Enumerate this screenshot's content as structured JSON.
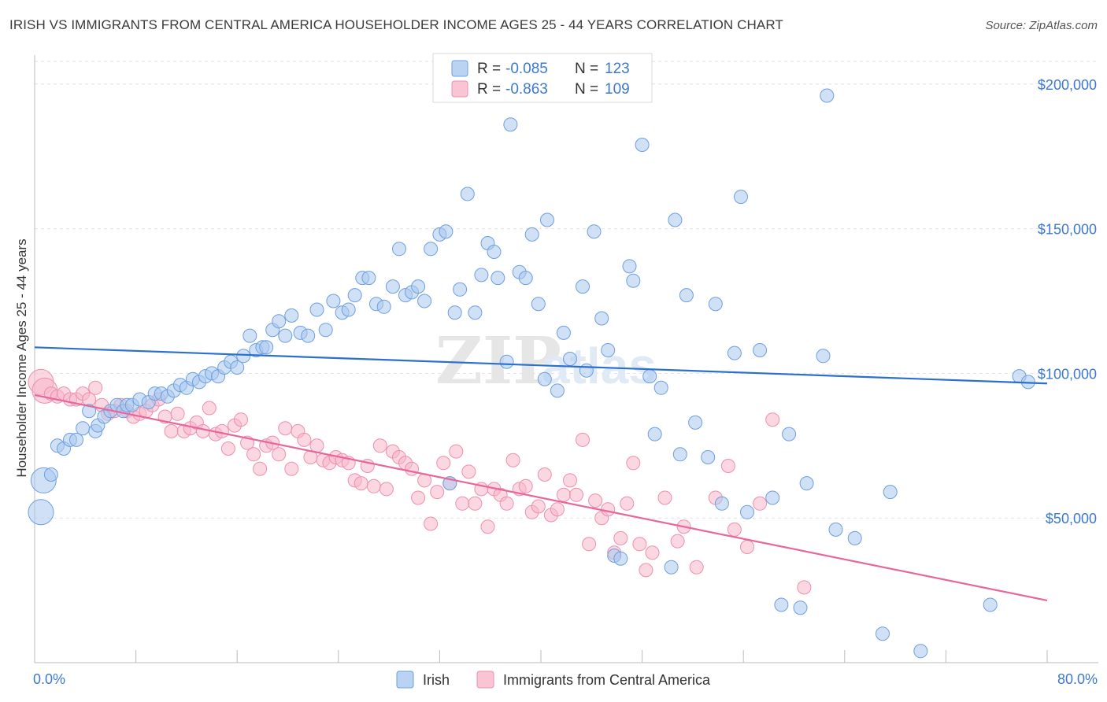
{
  "header": {
    "title": "IRISH VS IMMIGRANTS FROM CENTRAL AMERICA HOUSEHOLDER INCOME AGES 25 - 44 YEARS CORRELATION CHART",
    "source": "Source: ZipAtlas.com"
  },
  "watermark": {
    "zip": "ZIP",
    "atlas": "atlas"
  },
  "colors": {
    "irish": "#a9c8ef",
    "irish_stroke": "#6e9fe0",
    "irish_line": "#2b6fd0",
    "central": "#f7b6cb",
    "central_stroke": "#ee8fae",
    "central_line": "#e8679a",
    "tick_text": "#3d79cf"
  },
  "chart_data": {
    "type": "scatter",
    "title": "IRISH VS IMMIGRANTS FROM CENTRAL AMERICA HOUSEHOLDER INCOME AGES 25 - 44 YEARS CORRELATION CHART",
    "xlabel": "",
    "ylabel": "Householder Income Ages 25 - 44 years",
    "xlim": [
      0,
      80
    ],
    "ylim": [
      0,
      210000
    ],
    "x_tick_labels": [
      "0.0%",
      "80.0%"
    ],
    "y_ticks": [
      {
        "value": 50000,
        "label": "$50,000"
      },
      {
        "value": 100000,
        "label": "$100,000"
      },
      {
        "value": 150000,
        "label": "$150,000"
      },
      {
        "value": 200000,
        "label": "$200,000"
      }
    ],
    "grid": true,
    "legend_stats": [
      {
        "r_label": "R =",
        "r_value": "-0.085",
        "n_label": "N =",
        "n_value": "123"
      },
      {
        "r_label": "R =",
        "r_value": "-0.863",
        "n_label": "N =",
        "n_value": "109"
      }
    ],
    "series": [
      {
        "name": "Irish",
        "trend": {
          "x": [
            0,
            80
          ],
          "y": [
            109000,
            96500
          ]
        },
        "points": [
          [
            0.5,
            52000
          ],
          [
            0.7,
            63000
          ],
          [
            1.3,
            65000
          ],
          [
            1.8,
            75000
          ],
          [
            2.3,
            74000
          ],
          [
            2.8,
            77000
          ],
          [
            3.3,
            77000
          ],
          [
            3.8,
            81000
          ],
          [
            4.3,
            87000
          ],
          [
            4.8,
            80000
          ],
          [
            5.0,
            82000
          ],
          [
            5.5,
            85000
          ],
          [
            6.0,
            87000
          ],
          [
            6.5,
            89000
          ],
          [
            7.0,
            87000
          ],
          [
            7.3,
            89000
          ],
          [
            7.7,
            89000
          ],
          [
            8.3,
            91000
          ],
          [
            9.0,
            90000
          ],
          [
            9.5,
            93000
          ],
          [
            10.0,
            93000
          ],
          [
            10.5,
            92000
          ],
          [
            11.0,
            94000
          ],
          [
            11.5,
            96000
          ],
          [
            12.0,
            95000
          ],
          [
            12.5,
            98000
          ],
          [
            13.0,
            97000
          ],
          [
            13.5,
            99000
          ],
          [
            14.0,
            100000
          ],
          [
            14.5,
            99000
          ],
          [
            15.0,
            102000
          ],
          [
            15.5,
            104000
          ],
          [
            16.0,
            102000
          ],
          [
            16.5,
            106000
          ],
          [
            17.0,
            113000
          ],
          [
            17.5,
            108000
          ],
          [
            18.0,
            109000
          ],
          [
            18.3,
            109000
          ],
          [
            18.8,
            115000
          ],
          [
            19.3,
            118000
          ],
          [
            19.8,
            113000
          ],
          [
            20.3,
            120000
          ],
          [
            21.0,
            114000
          ],
          [
            21.6,
            113000
          ],
          [
            22.3,
            122000
          ],
          [
            23.0,
            115000
          ],
          [
            23.6,
            125000
          ],
          [
            24.3,
            121000
          ],
          [
            24.8,
            122000
          ],
          [
            25.3,
            127000
          ],
          [
            25.9,
            133000
          ],
          [
            26.4,
            133000
          ],
          [
            27.0,
            124000
          ],
          [
            27.6,
            123000
          ],
          [
            28.3,
            130000
          ],
          [
            28.8,
            143000
          ],
          [
            29.3,
            127000
          ],
          [
            29.8,
            128000
          ],
          [
            30.3,
            130000
          ],
          [
            30.8,
            125000
          ],
          [
            31.3,
            143000
          ],
          [
            32.0,
            148000
          ],
          [
            32.5,
            149000
          ],
          [
            33.2,
            121000
          ],
          [
            33.6,
            129000
          ],
          [
            34.2,
            162000
          ],
          [
            34.8,
            121000
          ],
          [
            35.3,
            134000
          ],
          [
            35.8,
            145000
          ],
          [
            36.3,
            142000
          ],
          [
            36.6,
            133000
          ],
          [
            37.3,
            104000
          ],
          [
            37.6,
            186000
          ],
          [
            38.3,
            135000
          ],
          [
            38.8,
            133000
          ],
          [
            39.3,
            148000
          ],
          [
            39.8,
            124000
          ],
          [
            40.3,
            98000
          ],
          [
            40.5,
            153000
          ],
          [
            41.3,
            94000
          ],
          [
            41.8,
            114000
          ],
          [
            42.3,
            105000
          ],
          [
            43.3,
            130000
          ],
          [
            43.6,
            101000
          ],
          [
            44.2,
            149000
          ],
          [
            44.8,
            119000
          ],
          [
            45.3,
            108000
          ],
          [
            45.8,
            37000
          ],
          [
            46.3,
            36000
          ],
          [
            47.0,
            137000
          ],
          [
            47.3,
            132000
          ],
          [
            48.0,
            179000
          ],
          [
            48.6,
            99000
          ],
          [
            49.0,
            79000
          ],
          [
            49.5,
            95000
          ],
          [
            50.3,
            33000
          ],
          [
            50.6,
            153000
          ],
          [
            51.0,
            72000
          ],
          [
            51.5,
            127000
          ],
          [
            52.2,
            83000
          ],
          [
            53.2,
            71000
          ],
          [
            53.8,
            124000
          ],
          [
            54.3,
            55000
          ],
          [
            55.3,
            107000
          ],
          [
            55.8,
            161000
          ],
          [
            56.3,
            52000
          ],
          [
            57.3,
            108000
          ],
          [
            58.3,
            57000
          ],
          [
            59.0,
            20000
          ],
          [
            59.6,
            79000
          ],
          [
            60.5,
            19000
          ],
          [
            61.0,
            62000
          ],
          [
            62.3,
            106000
          ],
          [
            62.6,
            196000
          ],
          [
            63.3,
            46000
          ],
          [
            64.8,
            43000
          ],
          [
            67.0,
            10000
          ],
          [
            67.6,
            59000
          ],
          [
            70.0,
            4000
          ],
          [
            75.5,
            20000
          ],
          [
            77.8,
            99000
          ],
          [
            78.5,
            97000
          ],
          [
            32.8,
            62000
          ]
        ]
      },
      {
        "name": "Immigrants from Central America",
        "trend": {
          "x": [
            0,
            80
          ],
          "y": [
            92500,
            21500
          ]
        },
        "points": [
          [
            0.5,
            97000
          ],
          [
            0.8,
            94000
          ],
          [
            1.3,
            93000
          ],
          [
            1.8,
            92000
          ],
          [
            2.3,
            93000
          ],
          [
            2.8,
            91000
          ],
          [
            3.3,
            91000
          ],
          [
            3.8,
            93000
          ],
          [
            4.3,
            91000
          ],
          [
            4.8,
            95000
          ],
          [
            5.3,
            89000
          ],
          [
            5.8,
            86000
          ],
          [
            6.3,
            87000
          ],
          [
            6.8,
            89000
          ],
          [
            7.3,
            87000
          ],
          [
            7.8,
            85000
          ],
          [
            8.3,
            86000
          ],
          [
            8.8,
            87000
          ],
          [
            9.3,
            89000
          ],
          [
            9.8,
            91000
          ],
          [
            10.3,
            85000
          ],
          [
            10.8,
            80000
          ],
          [
            11.3,
            86000
          ],
          [
            11.8,
            80000
          ],
          [
            12.3,
            81000
          ],
          [
            12.8,
            83000
          ],
          [
            13.3,
            80000
          ],
          [
            13.8,
            88000
          ],
          [
            14.3,
            79000
          ],
          [
            14.8,
            80000
          ],
          [
            15.3,
            74000
          ],
          [
            15.8,
            82000
          ],
          [
            16.3,
            84000
          ],
          [
            16.8,
            76000
          ],
          [
            17.3,
            72000
          ],
          [
            17.8,
            67000
          ],
          [
            18.3,
            75000
          ],
          [
            18.8,
            76000
          ],
          [
            19.3,
            72000
          ],
          [
            19.8,
            81000
          ],
          [
            20.3,
            67000
          ],
          [
            20.8,
            80000
          ],
          [
            21.3,
            77000
          ],
          [
            21.8,
            71000
          ],
          [
            22.3,
            75000
          ],
          [
            22.8,
            70000
          ],
          [
            23.3,
            69000
          ],
          [
            23.8,
            71000
          ],
          [
            24.3,
            70000
          ],
          [
            24.8,
            69000
          ],
          [
            25.3,
            63000
          ],
          [
            25.8,
            62000
          ],
          [
            26.3,
            68000
          ],
          [
            26.8,
            61000
          ],
          [
            27.3,
            75000
          ],
          [
            27.8,
            60000
          ],
          [
            28.3,
            73000
          ],
          [
            28.8,
            71000
          ],
          [
            29.3,
            69000
          ],
          [
            29.8,
            67000
          ],
          [
            30.3,
            57000
          ],
          [
            30.8,
            63000
          ],
          [
            31.3,
            48000
          ],
          [
            31.8,
            59000
          ],
          [
            32.3,
            69000
          ],
          [
            32.8,
            62000
          ],
          [
            33.3,
            73000
          ],
          [
            33.8,
            55000
          ],
          [
            34.3,
            66000
          ],
          [
            34.8,
            55000
          ],
          [
            35.3,
            60000
          ],
          [
            35.8,
            47000
          ],
          [
            36.3,
            60000
          ],
          [
            36.8,
            58000
          ],
          [
            37.3,
            55000
          ],
          [
            37.8,
            70000
          ],
          [
            38.3,
            60000
          ],
          [
            38.8,
            61000
          ],
          [
            39.3,
            52000
          ],
          [
            39.8,
            54000
          ],
          [
            40.3,
            65000
          ],
          [
            40.8,
            51000
          ],
          [
            41.3,
            53000
          ],
          [
            41.8,
            58000
          ],
          [
            42.3,
            63000
          ],
          [
            42.8,
            58000
          ],
          [
            43.3,
            77000
          ],
          [
            43.8,
            41000
          ],
          [
            44.3,
            56000
          ],
          [
            44.8,
            50000
          ],
          [
            45.3,
            53000
          ],
          [
            45.8,
            38000
          ],
          [
            46.3,
            43000
          ],
          [
            46.8,
            55000
          ],
          [
            47.3,
            69000
          ],
          [
            47.8,
            41000
          ],
          [
            48.3,
            32000
          ],
          [
            48.8,
            38000
          ],
          [
            49.8,
            57000
          ],
          [
            50.8,
            42000
          ],
          [
            51.3,
            47000
          ],
          [
            52.3,
            33000
          ],
          [
            53.8,
            57000
          ],
          [
            54.8,
            68000
          ],
          [
            55.3,
            46000
          ],
          [
            56.3,
            40000
          ],
          [
            57.3,
            55000
          ],
          [
            58.3,
            84000
          ],
          [
            60.8,
            26000
          ]
        ]
      }
    ]
  },
  "bottom_legend": {
    "irish": "Irish",
    "central": "Immigrants from Central America"
  }
}
